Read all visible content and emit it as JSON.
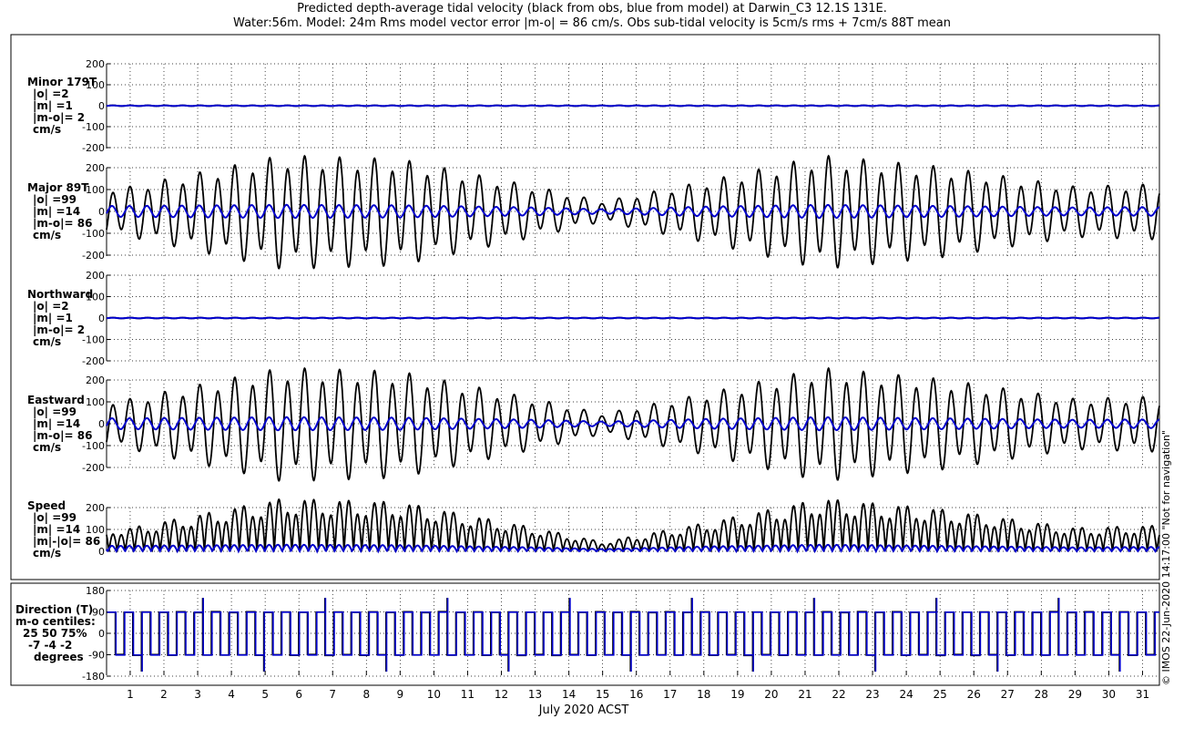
{
  "title_line1": "Predicted depth-average tidal velocity (black from obs, blue from model) at Darwin_C3 12.1S 131E.",
  "title_line2": "Water:56m. Model: 24m  Rms model vector error |m-o| = 86 cm/s. Obs sub-tidal velocity is 5cm/s rms + 7cm/s 88T mean",
  "credit": "© IMOS 22-Jun-2020 14:17:00  \"Not for navigation\"",
  "colors": {
    "obs": "#000000",
    "model": "#0000cc",
    "grid": "#000000"
  },
  "chart_data": [
    {
      "type": "line",
      "panel": "minor",
      "label_lines": [
        "Minor 179T",
        "|o| =2",
        "|m| =1",
        "|m-o|= 2",
        "cm/s"
      ],
      "ylim": [
        -200,
        200
      ],
      "yticks": [
        -200,
        -100,
        0,
        100,
        200
      ],
      "series": [
        {
          "name": "obs",
          "amplitude_cm_s": 2,
          "values": "near 0 cm/s throughout"
        },
        {
          "name": "model",
          "amplitude_cm_s": 1,
          "values": "near 0 cm/s throughout"
        }
      ],
      "grid": true
    },
    {
      "type": "line",
      "panel": "major",
      "label_lines": [
        "Major 89T",
        "|o| =99",
        "|m| =14",
        "|m-o|= 86",
        "cm/s"
      ],
      "ylim": [
        -200,
        200
      ],
      "yticks": [
        -200,
        -100,
        0,
        100,
        200
      ],
      "series": [
        {
          "name": "obs",
          "peak_envelope_cm_s": {
            "x_day": [
              1,
              5.5,
              9,
              13,
              15,
              18,
              21.5,
              25,
              29,
              31.5
            ],
            "amplitude": [
              100,
              225,
              210,
              100,
              40,
              120,
              225,
              180,
              100,
              110
            ]
          }
        },
        {
          "name": "model",
          "peak_envelope_cm_s": {
            "x_day": [
              1,
              5.5,
              9,
              13,
              15,
              18,
              21.5,
              25,
              29,
              31.5
            ],
            "amplitude": [
              25,
              30,
              28,
              18,
              10,
              22,
              30,
              25,
              18,
              20
            ]
          }
        }
      ],
      "grid": true
    },
    {
      "type": "line",
      "panel": "northward",
      "label_lines": [
        "Northward",
        "|o| =2",
        "|m| =1",
        "|m-o|= 2",
        "cm/s"
      ],
      "ylim": [
        -200,
        200
      ],
      "yticks": [
        -200,
        -100,
        0,
        100,
        200
      ],
      "series": [
        {
          "name": "obs",
          "amplitude_cm_s": 2,
          "values": "near 0 cm/s throughout"
        },
        {
          "name": "model",
          "amplitude_cm_s": 1,
          "values": "near 0 cm/s throughout"
        }
      ],
      "grid": true
    },
    {
      "type": "line",
      "panel": "eastward",
      "label_lines": [
        "Eastward",
        "|o| =99",
        "|m| =14",
        "|m-o|= 86",
        "cm/s"
      ],
      "ylim": [
        -200,
        200
      ],
      "yticks": [
        -200,
        -100,
        0,
        100,
        200
      ],
      "series": [
        {
          "name": "obs",
          "peak_envelope_cm_s": {
            "x_day": [
              1,
              5.5,
              9,
              13,
              15,
              18,
              21.5,
              25,
              29,
              31.5
            ],
            "amplitude": [
              100,
              225,
              210,
              100,
              40,
              120,
              225,
              180,
              100,
              110
            ]
          }
        },
        {
          "name": "model",
          "peak_envelope_cm_s": {
            "x_day": [
              1,
              5.5,
              9,
              13,
              15,
              18,
              21.5,
              25,
              29,
              31.5
            ],
            "amplitude": [
              25,
              30,
              28,
              18,
              10,
              22,
              30,
              25,
              18,
              20
            ]
          }
        }
      ],
      "grid": true
    },
    {
      "type": "line",
      "panel": "speed",
      "label_lines": [
        "Speed",
        "|o| =99",
        "|m| =14",
        "|m|-|o|= 86",
        "cm/s"
      ],
      "ylim": [
        0,
        200
      ],
      "yticks": [
        0,
        100,
        200
      ],
      "series": [
        {
          "name": "obs",
          "peak_cm_s": {
            "x_day": [
              1,
              5.5,
              9,
              13,
              15,
              18,
              21.5,
              25,
              29,
              31.5
            ],
            "peak": [
              100,
              225,
              210,
              100,
              40,
              120,
              225,
              180,
              100,
              110
            ]
          }
        },
        {
          "name": "model",
          "peak_cm_s": {
            "x_day": [
              1,
              5.5,
              9,
              13,
              15,
              18,
              21.5,
              25,
              29,
              31.5
            ],
            "peak": [
              25,
              30,
              28,
              18,
              10,
              22,
              30,
              25,
              18,
              20
            ]
          }
        }
      ],
      "grid": true
    },
    {
      "type": "line",
      "panel": "direction",
      "label_lines": [
        "Direction (T)",
        "m-o centiles:",
        "25  50  75%",
        "-7  -4  -2",
        "degrees"
      ],
      "ylim": [
        -180,
        180
      ],
      "yticks": [
        -180,
        -90,
        0,
        90,
        180
      ],
      "series": [
        {
          "name": "obs",
          "levels_deg": [
            89,
            -91
          ],
          "description": "flips between about +89T and -91T twice per day"
        },
        {
          "name": "model",
          "levels_deg": [
            89,
            -91
          ],
          "description": "flips between about +89T and -91T twice per day"
        }
      ],
      "grid": true
    }
  ],
  "xaxis": {
    "xlabel": "July 2020 ACST",
    "xlim_days": [
      0.3,
      31.5
    ],
    "ticks": [
      1,
      2,
      3,
      4,
      5,
      6,
      7,
      8,
      9,
      10,
      11,
      12,
      13,
      14,
      15,
      16,
      17,
      18,
      19,
      20,
      21,
      22,
      23,
      24,
      25,
      26,
      27,
      28,
      29,
      30,
      31
    ]
  }
}
